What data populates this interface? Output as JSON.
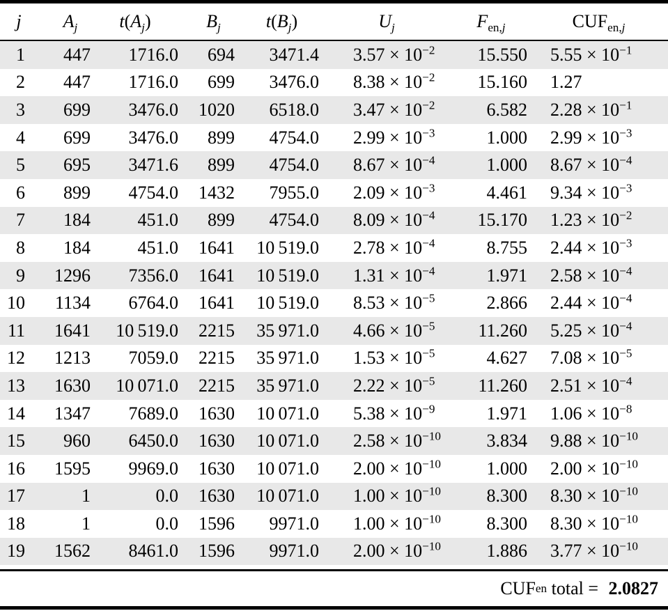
{
  "colors": {
    "stripe": "#e8e8e8",
    "rule": "#000000",
    "text": "#000000",
    "background": "#ffffff"
  },
  "table": {
    "headers": [
      [
        {
          "t": "j",
          "s": "it"
        }
      ],
      [
        {
          "t": "A",
          "s": "it"
        },
        {
          "t": "j",
          "s": "subit"
        }
      ],
      [
        {
          "t": "t",
          "s": "it"
        },
        {
          "t": "(",
          "s": "rm"
        },
        {
          "t": "A",
          "s": "it"
        },
        {
          "t": "j",
          "s": "subit"
        },
        {
          "t": ")",
          "s": "rm"
        }
      ],
      [
        {
          "t": "B",
          "s": "it"
        },
        {
          "t": "j",
          "s": "subit"
        }
      ],
      [
        {
          "t": "t",
          "s": "it"
        },
        {
          "t": "(",
          "s": "rm"
        },
        {
          "t": "B",
          "s": "it"
        },
        {
          "t": "j",
          "s": "subit"
        },
        {
          "t": ")",
          "s": "rm"
        }
      ],
      [
        {
          "t": "U",
          "s": "it"
        },
        {
          "t": "j",
          "s": "subit"
        }
      ],
      [
        {
          "t": "F",
          "s": "it"
        },
        {
          "t": "en,",
          "s": "subrm"
        },
        {
          "t": "j",
          "s": "subit"
        }
      ],
      [
        {
          "t": "CUF",
          "s": "rm"
        },
        {
          "t": "en,",
          "s": "subrm"
        },
        {
          "t": "j",
          "s": "subit"
        }
      ]
    ],
    "rows": [
      [
        "1",
        "447",
        "1716.0",
        "694",
        "3471.4",
        "3.57 × 10^−2",
        "15.550",
        "5.55 × 10^−1"
      ],
      [
        "2",
        "447",
        "1716.0",
        "699",
        "3476.0",
        "8.38 × 10^−2",
        "15.160",
        "1.27"
      ],
      [
        "3",
        "699",
        "3476.0",
        "1020",
        "6518.0",
        "3.47 × 10^−2",
        "6.582",
        "2.28 × 10^−1"
      ],
      [
        "4",
        "699",
        "3476.0",
        "899",
        "4754.0",
        "2.99 × 10^−3",
        "1.000",
        "2.99 × 10^−3"
      ],
      [
        "5",
        "695",
        "3471.6",
        "899",
        "4754.0",
        "8.67 × 10^−4",
        "1.000",
        "8.67 × 10^−4"
      ],
      [
        "6",
        "899",
        "4754.0",
        "1432",
        "7955.0",
        "2.09 × 10^−3",
        "4.461",
        "9.34 × 10^−3"
      ],
      [
        "7",
        "184",
        "451.0",
        "899",
        "4754.0",
        "8.09 × 10^−4",
        "15.170",
        "1.23 × 10^−2"
      ],
      [
        "8",
        "184",
        "451.0",
        "1641",
        "10 519.0",
        "2.78 × 10^−4",
        "8.755",
        "2.44 × 10^−3"
      ],
      [
        "9",
        "1296",
        "7356.0",
        "1641",
        "10 519.0",
        "1.31 × 10^−4",
        "1.971",
        "2.58 × 10^−4"
      ],
      [
        "10",
        "1134",
        "6764.0",
        "1641",
        "10 519.0",
        "8.53 × 10^−5",
        "2.866",
        "2.44 × 10^−4"
      ],
      [
        "11",
        "1641",
        "10 519.0",
        "2215",
        "35 971.0",
        "4.66 × 10^−5",
        "11.260",
        "5.25 × 10^−4"
      ],
      [
        "12",
        "1213",
        "7059.0",
        "2215",
        "35 971.0",
        "1.53 × 10^−5",
        "4.627",
        "7.08 × 10^−5"
      ],
      [
        "13",
        "1630",
        "10 071.0",
        "2215",
        "35 971.0",
        "2.22 × 10^−5",
        "11.260",
        "2.51 × 10^−4"
      ],
      [
        "14",
        "1347",
        "7689.0",
        "1630",
        "10 071.0",
        "5.38 × 10^−9",
        "1.971",
        "1.06 × 10^−8"
      ],
      [
        "15",
        "960",
        "6450.0",
        "1630",
        "10 071.0",
        "2.58 × 10^−10",
        "3.834",
        "9.88 × 10^−10"
      ],
      [
        "16",
        "1595",
        "9969.0",
        "1630",
        "10 071.0",
        "2.00 × 10^−10",
        "1.000",
        "2.00 × 10^−10"
      ],
      [
        "17",
        "1",
        "0.0",
        "1630",
        "10 071.0",
        "1.00 × 10^−10",
        "8.300",
        "8.30 × 10^−10"
      ],
      [
        "18",
        "1",
        "0.0",
        "1596",
        "9971.0",
        "1.00 × 10^−10",
        "8.300",
        "8.30 × 10^−10"
      ],
      [
        "19",
        "1562",
        "8461.0",
        "1596",
        "9971.0",
        "2.00 × 10^−10",
        "1.886",
        "3.77 × 10^−10"
      ]
    ]
  },
  "footer": {
    "segments": [
      {
        "t": "CUF",
        "s": "rm"
      },
      {
        "t": "en",
        "s": "subrm"
      },
      {
        "t": " total = ",
        "s": "rm"
      },
      {
        "t": "2.0827",
        "s": "b"
      }
    ]
  }
}
